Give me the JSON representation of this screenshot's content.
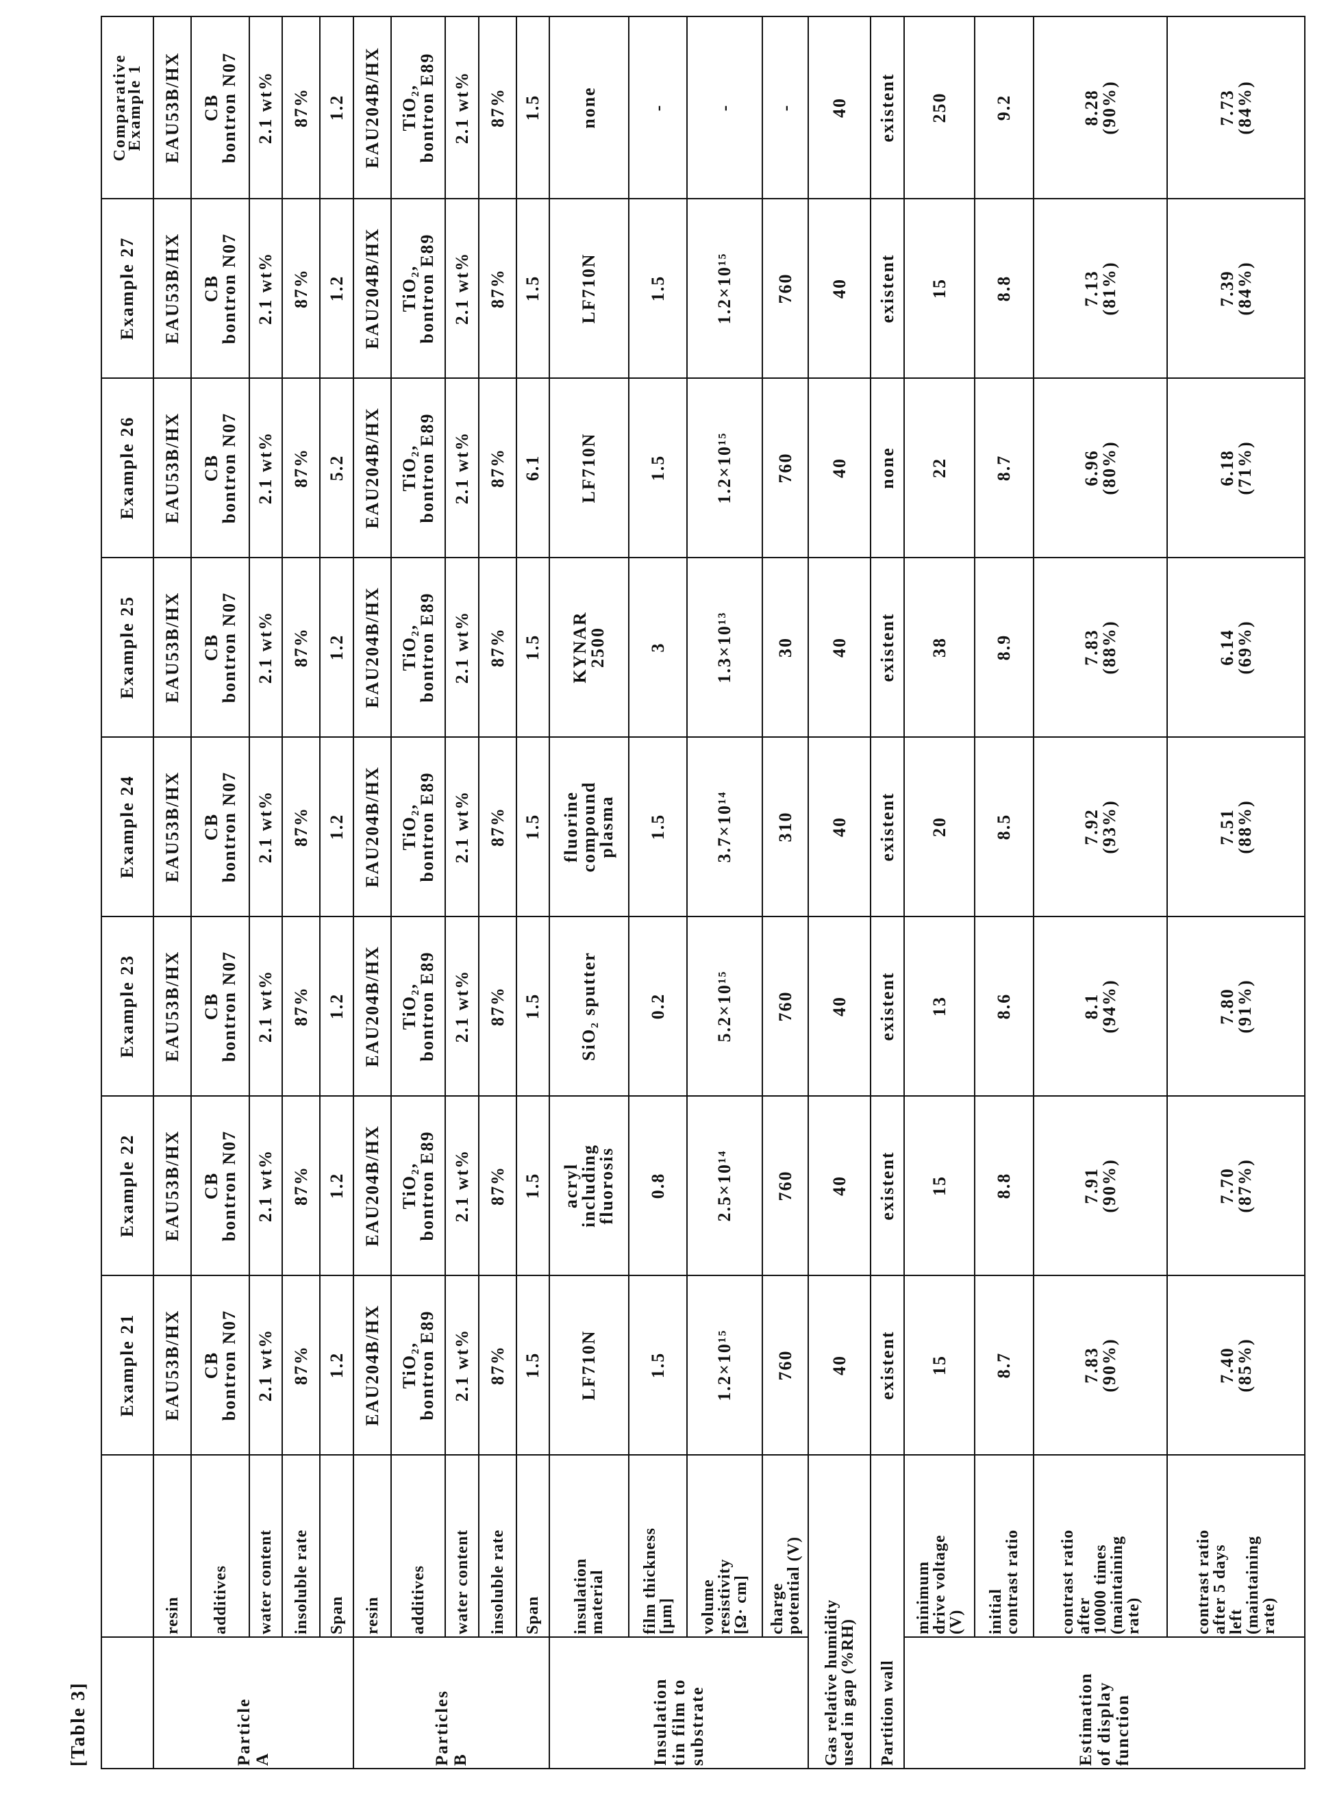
{
  "caption": "[Table 3]",
  "columns": [
    "Example 21",
    "Example 22",
    "Example 23",
    "Example 24",
    "Example 25",
    "Example 26",
    "Example 27",
    "Comparative\nExample 1"
  ],
  "groups": [
    {
      "label": "Particle\nA",
      "rows": [
        {
          "label": "resin",
          "values": [
            "EAU53B/HX",
            "EAU53B/HX",
            "EAU53B/HX",
            "EAU53B/HX",
            "EAU53B/HX",
            "EAU53B/HX",
            "EAU53B/HX",
            "EAU53B/HX"
          ]
        },
        {
          "label": "additives",
          "values": [
            "CB\nbontron N07",
            "CB\nbontron N07",
            "CB\nbontron N07",
            "CB\nbontron N07",
            "CB\nbontron N07",
            "CB\nbontron N07",
            "CB\nbontron N07",
            "CB\nbontron N07"
          ]
        },
        {
          "label": "water content",
          "values": [
            "2.1 wt%",
            "2.1 wt%",
            "2.1 wt%",
            "2.1 wt%",
            "2.1 wt%",
            "2.1 wt%",
            "2.1 wt%",
            "2.1 wt%"
          ]
        },
        {
          "label": "insoluble rate",
          "values": [
            "87%",
            "87%",
            "87%",
            "87%",
            "87%",
            "87%",
            "87%",
            "87%"
          ]
        },
        {
          "label": "Span",
          "values": [
            "1.2",
            "1.2",
            "1.2",
            "1.2",
            "1.2",
            "5.2",
            "1.2",
            "1.2"
          ]
        }
      ]
    },
    {
      "label": "Particles\nB",
      "rows": [
        {
          "label": "resin",
          "values": [
            "EAU204B/HX",
            "EAU204B/HX",
            "EAU204B/HX",
            "EAU204B/HX",
            "EAU204B/HX",
            "EAU204B/HX",
            "EAU204B/HX",
            "EAU204B/HX"
          ]
        },
        {
          "label": "additives",
          "values": [
            "TiO₂,\nbontron E89",
            "TiO₂,\nbontron E89",
            "TiO₂,\nbontron E89",
            "TiO₂,\nbontron E89",
            "TiO₂,\nbontron E89",
            "TiO₂,\nbontron E89",
            "TiO₂,\nbontron E89",
            "TiO₂,\nbontron E89"
          ]
        },
        {
          "label": "water content",
          "values": [
            "2.1 wt%",
            "2.1 wt%",
            "2.1 wt%",
            "2.1 wt%",
            "2.1 wt%",
            "2.1 wt%",
            "2.1 wt%",
            "2.1 wt%"
          ]
        },
        {
          "label": "insoluble rate",
          "values": [
            "87%",
            "87%",
            "87%",
            "87%",
            "87%",
            "87%",
            "87%",
            "87%"
          ]
        },
        {
          "label": "Span",
          "values": [
            "1.5",
            "1.5",
            "1.5",
            "1.5",
            "1.5",
            "6.1",
            "1.5",
            "1.5"
          ]
        }
      ]
    },
    {
      "label": "Insulation\ntin film to\nsubstrate",
      "rows": [
        {
          "label": "insulation\nmaterial",
          "values": [
            "LF710N",
            "acryl\nincluding\nfluorosis",
            "SiO₂ sputter",
            "fluorine\ncompound\nplasma",
            "KYNAR\n2500",
            "LF710N",
            "LF710N",
            "none"
          ]
        },
        {
          "label": "film thickness\n[μm]",
          "values": [
            "1.5",
            "0.8",
            "0.2",
            "1.5",
            "3",
            "1.5",
            "1.5",
            "-"
          ]
        },
        {
          "label": "volume\nresistivity\n[Ω· cm]",
          "values": [
            "1.2×10¹⁵",
            "2.5×10¹⁴",
            "5.2×10¹⁵",
            "3.7×10¹⁴",
            "1.3×10¹³",
            "1.2×10¹⁵",
            "1.2×10¹⁵",
            "-"
          ]
        },
        {
          "label": "charge\npotential (V)",
          "values": [
            "760",
            "760",
            "760",
            "310",
            "30",
            "760",
            "760",
            "-"
          ]
        }
      ]
    },
    {
      "label": "Gas relative humidity\nused in gap (%RH)",
      "span": true,
      "rows": [
        {
          "label": "",
          "values": [
            "40",
            "40",
            "40",
            "40",
            "40",
            "40",
            "40",
            "40"
          ]
        }
      ]
    },
    {
      "label": "Partition wall",
      "span": true,
      "rows": [
        {
          "label": "",
          "values": [
            "existent",
            "existent",
            "existent",
            "existent",
            "existent",
            "none",
            "existent",
            "existent"
          ]
        }
      ]
    },
    {
      "label": "Estimation\nof display\nfunction",
      "rows": [
        {
          "label": "minimum\ndrive voltage\n(V)",
          "values": [
            "15",
            "15",
            "13",
            "20",
            "38",
            "22",
            "15",
            "250"
          ]
        },
        {
          "label": "initial\ncontrast ratio",
          "values": [
            "8.7",
            "8.8",
            "8.6",
            "8.5",
            "8.9",
            "8.7",
            "8.8",
            "9.2"
          ]
        },
        {
          "label": "contrast ratio\nafter\n10000 times\n(maintaining\nrate)",
          "values": [
            "7.83\n(90%)",
            "7.91\n(90%)",
            "8.1\n(94%)",
            "7.92\n(93%)",
            "7.83\n(88%)",
            "6.96\n(80%)",
            "7.13\n(81%)",
            "8.28\n(90%)"
          ]
        },
        {
          "label": "contrast ratio\nafter 5 days\nleft\n(maintaining\nrate)",
          "values": [
            "7.40\n(85%)",
            "7.70\n(87%)",
            "7.80\n(91%)",
            "7.51\n(88%)",
            "6.14\n(69%)",
            "6.18\n(71%)",
            "7.39\n(84%)",
            "7.73\n(84%)"
          ]
        }
      ]
    }
  ]
}
